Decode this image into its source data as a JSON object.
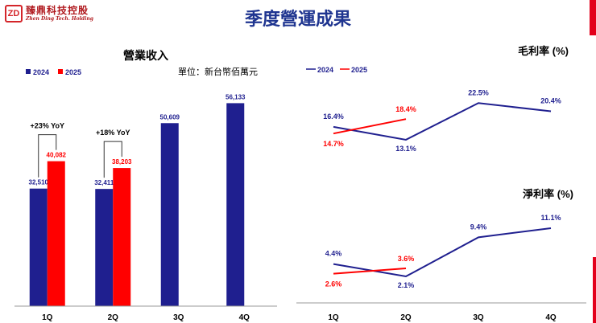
{
  "header": {
    "logo_mark": "ZD",
    "logo_zh": "臻鼎科技控股",
    "logo_en": "Zhen Ding Tech. Holding",
    "title": "季度營運成果",
    "accent_color": "#e3001b"
  },
  "chart_data": [
    {
      "type": "bar",
      "title": "營業收入",
      "unit_note": "單位：新台幣佰萬元",
      "categories": [
        "1Q",
        "2Q",
        "3Q",
        "4Q"
      ],
      "series": [
        {
          "name": "2024",
          "color": "#1f1f8f",
          "values": [
            32510,
            32411,
            50609,
            56133
          ],
          "labels": [
            "32,510",
            "32,411",
            "50,609",
            "56,133"
          ]
        },
        {
          "name": "2025",
          "color": "#ff0000",
          "values": [
            40082,
            38203,
            null,
            null
          ],
          "labels": [
            "40,082",
            "38,203",
            "",
            ""
          ]
        }
      ],
      "annotations": [
        {
          "category": "1Q",
          "text": "+23% YoY"
        },
        {
          "category": "2Q",
          "text": "+18% YoY"
        }
      ],
      "ylim": [
        0,
        60000
      ],
      "legend": "top-left"
    },
    {
      "type": "line",
      "title": "毛利率 (%)",
      "categories": [
        "1Q",
        "2Q",
        "3Q",
        "4Q"
      ],
      "series": [
        {
          "name": "2024",
          "color": "#1f1f8f",
          "values": [
            16.4,
            13.1,
            22.5,
            20.4
          ],
          "labels": [
            "16.4%",
            "13.1%",
            "22.5%",
            "20.4%"
          ]
        },
        {
          "name": "2025",
          "color": "#ff0000",
          "values": [
            14.7,
            18.4,
            null,
            null
          ],
          "labels": [
            "14.7%",
            "18.4%",
            "",
            ""
          ]
        }
      ],
      "ylim": [
        10,
        24
      ],
      "legend": "top-left"
    },
    {
      "type": "line",
      "title": "淨利率 (%)",
      "categories": [
        "1Q",
        "2Q",
        "3Q",
        "4Q"
      ],
      "series": [
        {
          "name": "2024",
          "color": "#1f1f8f",
          "values": [
            4.4,
            2.1,
            9.4,
            11.1
          ],
          "labels": [
            "4.4%",
            "2.1%",
            "9.4%",
            "11.1%"
          ]
        },
        {
          "name": "2025",
          "color": "#ff0000",
          "values": [
            2.6,
            3.6,
            null,
            null
          ],
          "labels": [
            "2.6%",
            "3.6%",
            "",
            ""
          ]
        }
      ],
      "ylim": [
        0,
        12
      ]
    }
  ]
}
